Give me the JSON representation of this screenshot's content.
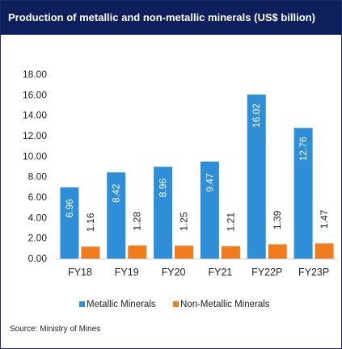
{
  "title": "Production of metallic and non-metallic minerals (US$ billion)",
  "source": "Source: Ministry of Mines",
  "colors": {
    "header_bg": "#0d1f5c",
    "metallic": "#2e8fd8",
    "non_metallic": "#f07c1e"
  },
  "chart_data": {
    "type": "bar",
    "categories": [
      "FY18",
      "FY19",
      "FY20",
      "FY21",
      "FY22P",
      "FY23P"
    ],
    "series": [
      {
        "name": "Metallic Minerals",
        "values": [
          6.96,
          8.42,
          8.96,
          9.47,
          16.02,
          12.76
        ]
      },
      {
        "name": "Non-Metallic Minerals",
        "values": [
          1.16,
          1.28,
          1.25,
          1.21,
          1.39,
          1.47
        ]
      }
    ],
    "ylim": [
      0,
      18
    ],
    "yticks": [
      "0.00",
      "2.00",
      "4.00",
      "6.00",
      "8.00",
      "10.00",
      "12.00",
      "14.00",
      "16.00",
      "18.00"
    ],
    "value_labels": [
      [
        "6.96",
        "8.42",
        "8.96",
        "9.47",
        "16.02",
        "12.76"
      ],
      [
        "1.16",
        "1.28",
        "1.25",
        "1.21",
        "1.39",
        "1.47"
      ]
    ],
    "grid": false,
    "legend_position": "bottom"
  }
}
